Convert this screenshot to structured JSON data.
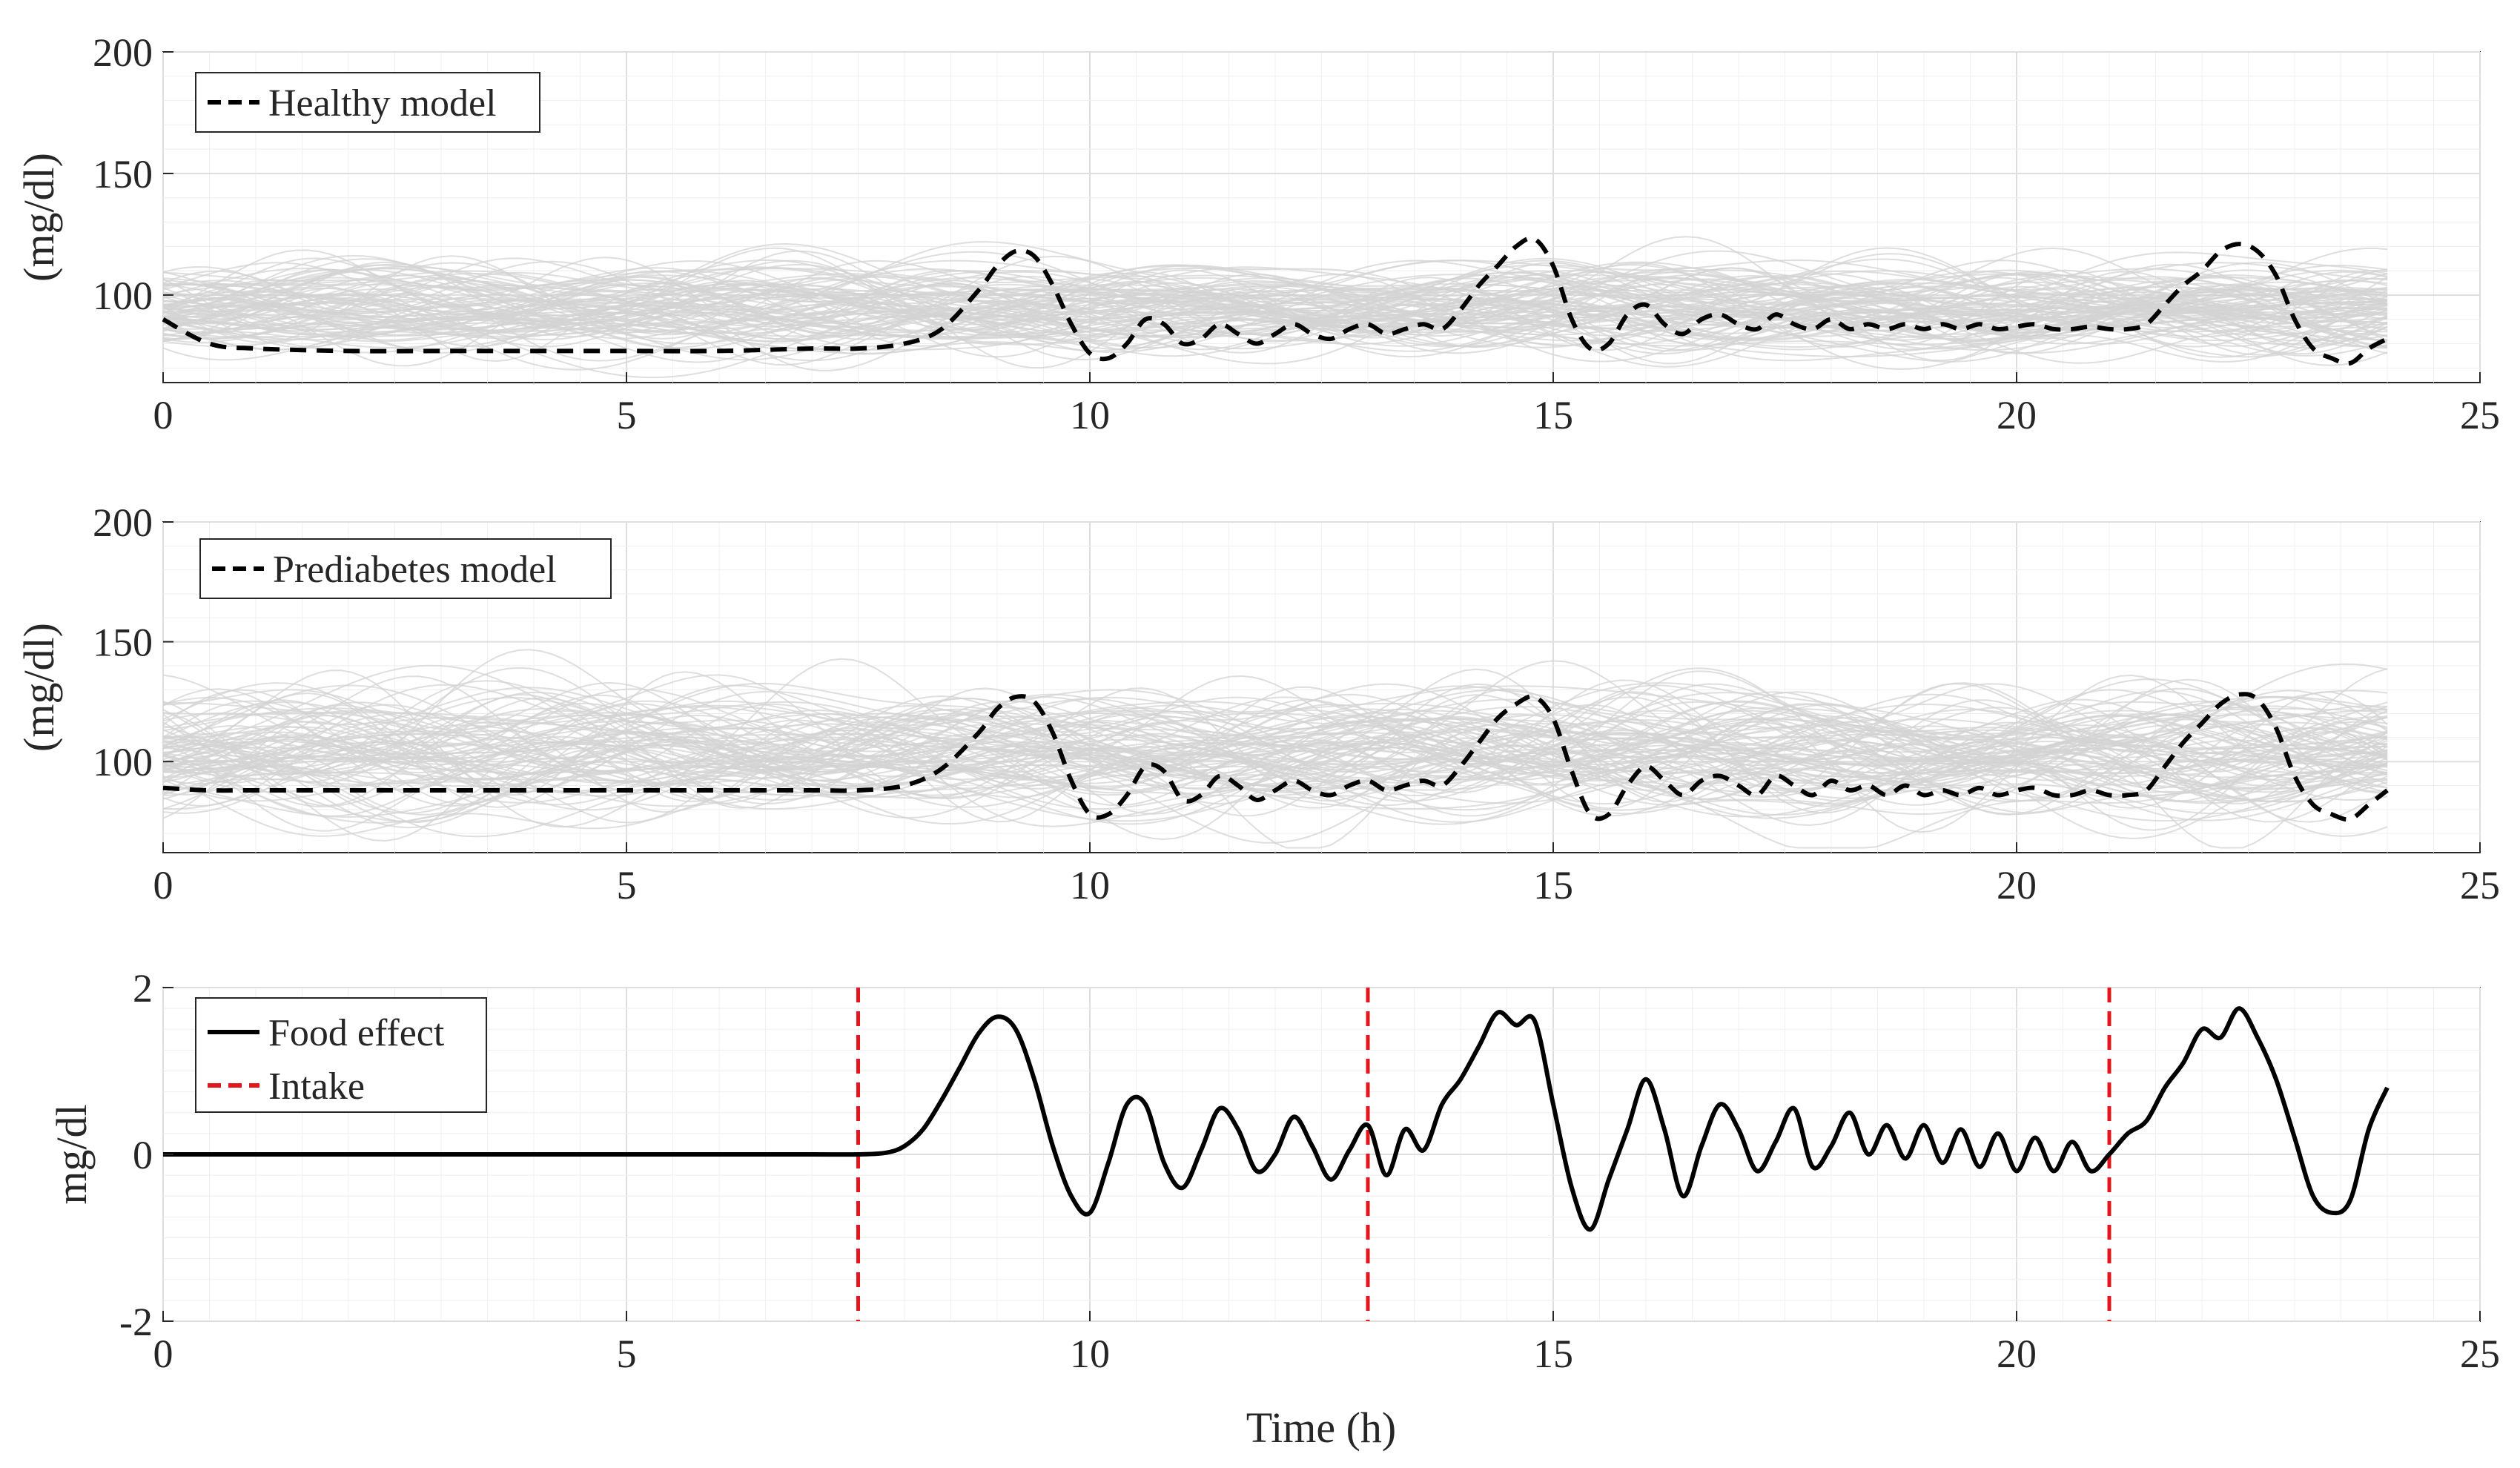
{
  "figure": {
    "xlabel": "Time (h)"
  },
  "chart_data": [
    {
      "type": "line",
      "title": "",
      "xlabel": "",
      "ylabel": "(mg/dl)",
      "xlim": [
        0,
        25
      ],
      "ylim": [
        64,
        200
      ],
      "xticks": [
        0,
        5,
        10,
        15,
        20,
        25
      ],
      "yticks": [
        100,
        150,
        200
      ],
      "grid": true,
      "legend": {
        "position": "top-left",
        "entries": [
          {
            "label": "Healthy model",
            "style": "black-dashed"
          }
        ]
      },
      "series": [
        {
          "name": "Healthy model",
          "x": [
            0,
            0.5,
            1,
            2,
            3,
            4,
            5,
            6,
            7,
            7.5,
            8,
            8.4,
            8.8,
            9.0,
            9.2,
            9.4,
            9.6,
            9.8,
            10.0,
            10.2,
            10.4,
            10.6,
            10.8,
            11.0,
            11.2,
            11.4,
            11.6,
            11.8,
            12.0,
            12.2,
            12.4,
            12.6,
            12.8,
            13.0,
            13.2,
            13.4,
            13.6,
            13.8,
            14.0,
            14.2,
            14.4,
            14.6,
            14.8,
            15.0,
            15.2,
            15.4,
            15.6,
            15.8,
            16.0,
            16.2,
            16.4,
            16.6,
            16.8,
            17.0,
            17.2,
            17.4,
            17.6,
            17.8,
            18.0,
            18.2,
            18.4,
            18.6,
            18.8,
            19.0,
            19.2,
            19.4,
            19.6,
            19.8,
            20.0,
            20.2,
            20.4,
            20.6,
            20.8,
            21.0,
            21.2,
            21.4,
            21.6,
            21.8,
            22.0,
            22.2,
            22.4,
            22.6,
            22.8,
            23.0,
            23.2,
            23.4,
            23.6,
            23.8,
            24.0
          ],
          "y": [
            90,
            80,
            78,
            77,
            77,
            77,
            77,
            77,
            78,
            78,
            80,
            86,
            102,
            112,
            118,
            116,
            104,
            88,
            76,
            74,
            80,
            90,
            88,
            80,
            82,
            88,
            84,
            80,
            84,
            88,
            84,
            82,
            86,
            88,
            84,
            86,
            88,
            86,
            94,
            104,
            112,
            120,
            123,
            112,
            90,
            78,
            80,
            92,
            96,
            88,
            84,
            90,
            92,
            88,
            86,
            92,
            88,
            86,
            90,
            86,
            88,
            86,
            88,
            86,
            88,
            86,
            88,
            86,
            87,
            88,
            86,
            86,
            87,
            86,
            86,
            88,
            96,
            104,
            110,
            118,
            121,
            118,
            108,
            90,
            78,
            74,
            72,
            78,
            82
          ]
        }
      ],
      "background": {
        "description": "Monte Carlo simulations",
        "color": "#d3d3d3",
        "center": 95,
        "spread": 18
      }
    },
    {
      "type": "line",
      "title": "",
      "xlabel": "",
      "ylabel": "(mg/dl)",
      "xlim": [
        0,
        25
      ],
      "ylim": [
        62,
        200
      ],
      "xticks": [
        0,
        5,
        10,
        15,
        20,
        25
      ],
      "yticks": [
        100,
        150,
        200
      ],
      "grid": true,
      "legend": {
        "position": "top-left",
        "entries": [
          {
            "label": "Prediabetes model",
            "style": "black-dashed"
          }
        ]
      },
      "series": [
        {
          "name": "Prediabetes model",
          "x": [
            0,
            0.5,
            1,
            2,
            3,
            4,
            5,
            6,
            7,
            7.5,
            8,
            8.4,
            8.8,
            9.0,
            9.2,
            9.4,
            9.6,
            9.8,
            10.0,
            10.2,
            10.4,
            10.6,
            10.8,
            11.0,
            11.2,
            11.4,
            11.6,
            11.8,
            12.0,
            12.2,
            12.4,
            12.6,
            12.8,
            13.0,
            13.2,
            13.4,
            13.6,
            13.8,
            14.0,
            14.2,
            14.4,
            14.6,
            14.8,
            15.0,
            15.2,
            15.4,
            15.6,
            15.8,
            16.0,
            16.2,
            16.4,
            16.6,
            16.8,
            17.0,
            17.2,
            17.4,
            17.6,
            17.8,
            18.0,
            18.2,
            18.4,
            18.6,
            18.8,
            19.0,
            19.2,
            19.4,
            19.6,
            19.8,
            20.0,
            20.2,
            20.4,
            20.6,
            20.8,
            21.0,
            21.2,
            21.4,
            21.6,
            21.8,
            22.0,
            22.2,
            22.4,
            22.6,
            22.8,
            23.0,
            23.2,
            23.4,
            23.6,
            23.8,
            24.0
          ],
          "y": [
            89,
            88,
            88,
            88,
            88,
            88,
            88,
            88,
            88,
            88,
            90,
            97,
            112,
            122,
            127,
            125,
            112,
            92,
            78,
            78,
            86,
            98,
            96,
            84,
            86,
            94,
            90,
            84,
            88,
            92,
            88,
            86,
            90,
            92,
            88,
            90,
            92,
            90,
            98,
            108,
            118,
            124,
            127,
            118,
            96,
            78,
            78,
            90,
            98,
            92,
            86,
            92,
            94,
            90,
            86,
            94,
            90,
            86,
            92,
            88,
            90,
            86,
            90,
            86,
            88,
            86,
            89,
            86,
            88,
            89,
            86,
            86,
            88,
            86,
            86,
            88,
            98,
            108,
            116,
            124,
            128,
            126,
            114,
            94,
            82,
            78,
            76,
            82,
            88
          ]
        }
      ],
      "background": {
        "description": "Monte Carlo simulations",
        "color": "#d3d3d3",
        "center": 104,
        "spread": 25
      }
    },
    {
      "type": "line",
      "title": "",
      "xlabel": "Time (h)",
      "ylabel": "mg/dl",
      "xlim": [
        0,
        25
      ],
      "ylim": [
        -2,
        2
      ],
      "xticks": [
        0,
        5,
        10,
        15,
        20,
        25
      ],
      "yticks": [
        -2,
        0,
        2
      ],
      "grid": true,
      "legend": {
        "position": "top-left",
        "entries": [
          {
            "label": "Food effect",
            "style": "black-solid"
          },
          {
            "label": "Intake",
            "style": "red-dashed"
          }
        ]
      },
      "series": [
        {
          "name": "Food effect",
          "x": [
            0,
            1,
            2,
            3,
            4,
            5,
            6,
            7,
            7.5,
            7.8,
            8.0,
            8.2,
            8.4,
            8.6,
            8.8,
            9.0,
            9.2,
            9.4,
            9.6,
            9.8,
            10.0,
            10.2,
            10.4,
            10.6,
            10.8,
            11.0,
            11.2,
            11.4,
            11.6,
            11.8,
            12.0,
            12.2,
            12.4,
            12.6,
            12.8,
            13.0,
            13.2,
            13.4,
            13.6,
            13.8,
            14.0,
            14.2,
            14.4,
            14.6,
            14.8,
            15.0,
            15.2,
            15.4,
            15.6,
            15.8,
            16.0,
            16.2,
            16.4,
            16.6,
            16.8,
            17.0,
            17.2,
            17.4,
            17.6,
            17.8,
            18.0,
            18.2,
            18.4,
            18.6,
            18.8,
            19.0,
            19.2,
            19.4,
            19.6,
            19.8,
            20.0,
            20.2,
            20.4,
            20.6,
            20.8,
            21.0,
            21.2,
            21.4,
            21.6,
            21.8,
            22.0,
            22.2,
            22.4,
            22.6,
            22.8,
            23.0,
            23.2,
            23.4,
            23.6,
            23.8,
            24.0
          ],
          "y": [
            0,
            0,
            0,
            0,
            0,
            0,
            0,
            0,
            0,
            0.02,
            0.1,
            0.3,
            0.65,
            1.05,
            1.45,
            1.65,
            1.5,
            0.9,
            0.1,
            -0.5,
            -0.7,
            -0.1,
            0.6,
            0.6,
            -0.1,
            -0.4,
            0.05,
            0.55,
            0.3,
            -0.2,
            0.0,
            0.45,
            0.1,
            -0.3,
            0.05,
            0.35,
            -0.25,
            0.3,
            0.05,
            0.6,
            0.9,
            1.3,
            1.7,
            1.55,
            1.6,
            0.6,
            -0.4,
            -0.9,
            -0.3,
            0.3,
            0.9,
            0.3,
            -0.5,
            0.1,
            0.6,
            0.3,
            -0.2,
            0.15,
            0.55,
            -0.15,
            0.1,
            0.5,
            0.0,
            0.35,
            -0.05,
            0.35,
            -0.1,
            0.3,
            -0.15,
            0.25,
            -0.2,
            0.2,
            -0.2,
            0.15,
            -0.2,
            0.0,
            0.25,
            0.4,
            0.8,
            1.1,
            1.5,
            1.4,
            1.75,
            1.4,
            0.9,
            0.2,
            -0.5,
            -0.7,
            -0.55,
            0.3,
            0.8
          ]
        }
      ],
      "intake_times": [
        7.5,
        13,
        21
      ]
    }
  ]
}
